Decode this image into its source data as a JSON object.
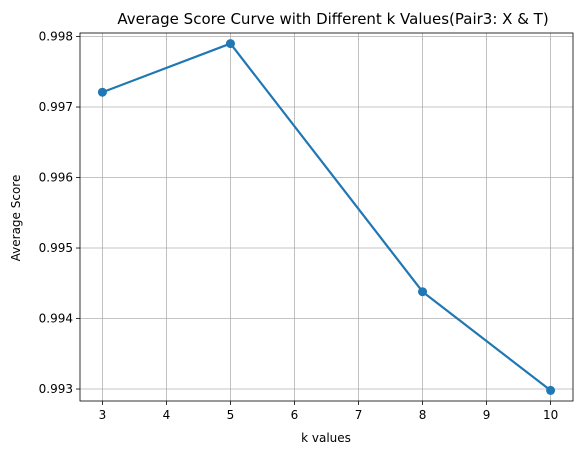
{
  "chart_data": {
    "type": "line",
    "title": "Average Score Curve with Different k Values(Pair3: X & T)",
    "xlabel": "k values",
    "ylabel": "Average Score",
    "x": [
      3,
      5,
      8,
      10
    ],
    "series": [
      {
        "values": [
          0.99721,
          0.9979,
          0.99438,
          0.99298
        ],
        "color": "#1f77b4",
        "marker": "circle"
      }
    ],
    "xlim": [
      2.65,
      10.35
    ],
    "ylim": [
      0.99283,
      0.99805
    ],
    "xticks": [
      3,
      4,
      5,
      6,
      7,
      8,
      9,
      10
    ],
    "yticks": [
      0.993,
      0.994,
      0.995,
      0.996,
      0.997,
      0.998
    ],
    "ytick_labels": [
      "0.993",
      "0.994",
      "0.995",
      "0.996",
      "0.997",
      "0.998"
    ],
    "grid": true
  }
}
